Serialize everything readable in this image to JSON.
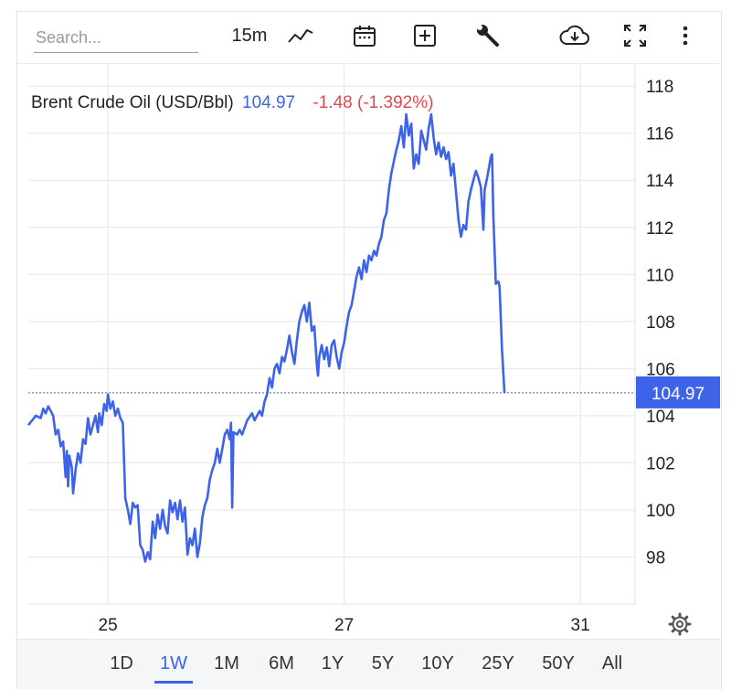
{
  "toolbar": {
    "search_placeholder": "Search...",
    "interval_label": "15m",
    "icons": [
      "line-chart-icon",
      "calendar-icon",
      "add-indicator-icon",
      "wrench-icon",
      "cloud-download-icon",
      "fullscreen-icon",
      "more-vertical-icon"
    ]
  },
  "header": {
    "symbol": "Brent Crude Oil (USD/Bbl)",
    "last": "104.97",
    "change": "-1.48 (-1.392%)"
  },
  "range_buttons": [
    "1D",
    "1W",
    "1M",
    "6M",
    "1Y",
    "5Y",
    "10Y",
    "25Y",
    "50Y",
    "All"
  ],
  "active_range": "1W",
  "colors": {
    "line": "#3d63e8",
    "down": "#e0494f",
    "grid": "#e6e6e6",
    "badge": "#3d63e8"
  },
  "chart_data": {
    "type": "line",
    "title": "Brent Crude Oil (USD/Bbl)",
    "xlabel": "",
    "ylabel": "",
    "x_tick_labels": [
      {
        "label": "25",
        "x": 3.2
      },
      {
        "label": "27",
        "x": 12.7
      },
      {
        "label": "31",
        "x": 22.2
      }
    ],
    "y_ticks": [
      98,
      100,
      102,
      104,
      106,
      108,
      110,
      112,
      114,
      116,
      118
    ],
    "ylim": [
      96.0,
      118.9
    ],
    "xlim": [
      0,
      24.4
    ],
    "last_value": 104.97,
    "grid": true,
    "series": [
      {
        "name": "Brent Crude Oil",
        "points": [
          [
            0,
            103.6
          ],
          [
            0.3,
            104.0
          ],
          [
            0.5,
            103.9
          ],
          [
            0.6,
            104.3
          ],
          [
            0.7,
            104.1
          ],
          [
            0.8,
            104.4
          ],
          [
            0.9,
            104.2
          ],
          [
            1.0,
            104.0
          ],
          [
            1.1,
            103.2
          ],
          [
            1.2,
            103.4
          ],
          [
            1.3,
            102.7
          ],
          [
            1.4,
            102.9
          ],
          [
            1.5,
            101.4
          ],
          [
            1.55,
            102.5
          ],
          [
            1.6,
            101.0
          ],
          [
            1.65,
            102.3
          ],
          [
            1.75,
            101.8
          ],
          [
            1.8,
            100.7
          ],
          [
            1.9,
            101.7
          ],
          [
            2.0,
            102.4
          ],
          [
            2.1,
            102.0
          ],
          [
            2.2,
            103.0
          ],
          [
            2.3,
            102.8
          ],
          [
            2.4,
            103.9
          ],
          [
            2.5,
            103.2
          ],
          [
            2.6,
            103.6
          ],
          [
            2.7,
            104.0
          ],
          [
            2.8,
            103.3
          ],
          [
            2.85,
            104.1
          ],
          [
            2.95,
            103.6
          ],
          [
            3.05,
            104.5
          ],
          [
            3.15,
            104.2
          ],
          [
            3.2,
            104.9
          ],
          [
            3.3,
            104.3
          ],
          [
            3.4,
            104.6
          ],
          [
            3.5,
            104.0
          ],
          [
            3.6,
            104.3
          ],
          [
            3.7,
            103.9
          ],
          [
            3.8,
            103.7
          ],
          [
            3.9,
            100.5
          ],
          [
            4.0,
            100.0
          ],
          [
            4.1,
            99.4
          ],
          [
            4.2,
            100.3
          ],
          [
            4.3,
            100.1
          ],
          [
            4.4,
            100.2
          ],
          [
            4.5,
            98.5
          ],
          [
            4.6,
            98.3
          ],
          [
            4.7,
            97.8
          ],
          [
            4.8,
            98.2
          ],
          [
            4.9,
            97.9
          ],
          [
            5.0,
            99.5
          ],
          [
            5.1,
            98.8
          ],
          [
            5.2,
            99.8
          ],
          [
            5.3,
            99.2
          ],
          [
            5.4,
            100.0
          ],
          [
            5.5,
            99.3
          ],
          [
            5.6,
            99.0
          ],
          [
            5.7,
            100.4
          ],
          [
            5.8,
            99.9
          ],
          [
            5.9,
            100.3
          ],
          [
            6.0,
            99.6
          ],
          [
            6.1,
            100.4
          ],
          [
            6.2,
            99.5
          ],
          [
            6.3,
            100.1
          ],
          [
            6.4,
            98.1
          ],
          [
            6.5,
            98.8
          ],
          [
            6.6,
            98.5
          ],
          [
            6.7,
            99.2
          ],
          [
            6.8,
            98.0
          ],
          [
            6.9,
            98.6
          ],
          [
            7.0,
            99.7
          ],
          [
            7.1,
            100.2
          ],
          [
            7.2,
            100.5
          ],
          [
            7.3,
            101.3
          ],
          [
            7.4,
            101.7
          ],
          [
            7.5,
            102.0
          ],
          [
            7.6,
            102.6
          ],
          [
            7.7,
            102.0
          ],
          [
            7.8,
            102.6
          ],
          [
            7.9,
            103.2
          ],
          [
            8.0,
            103.4
          ],
          [
            8.1,
            103.0
          ],
          [
            8.15,
            103.7
          ],
          [
            8.2,
            100.1
          ],
          [
            8.25,
            103.3
          ],
          [
            8.4,
            103.2
          ],
          [
            8.5,
            103.4
          ],
          [
            8.6,
            103.2
          ],
          [
            8.8,
            103.8
          ],
          [
            9.0,
            104.1
          ],
          [
            9.1,
            103.8
          ],
          [
            9.3,
            104.2
          ],
          [
            9.4,
            104.0
          ],
          [
            9.5,
            104.6
          ],
          [
            9.6,
            104.9
          ],
          [
            9.7,
            105.6
          ],
          [
            9.8,
            105.2
          ],
          [
            9.9,
            106.0
          ],
          [
            10.0,
            106.2
          ],
          [
            10.1,
            105.8
          ],
          [
            10.2,
            106.5
          ],
          [
            10.3,
            106.3
          ],
          [
            10.4,
            106.8
          ],
          [
            10.5,
            107.4
          ],
          [
            10.6,
            106.7
          ],
          [
            10.7,
            106.2
          ],
          [
            10.8,
            107.2
          ],
          [
            10.9,
            108.0
          ],
          [
            11.0,
            108.4
          ],
          [
            11.1,
            108.7
          ],
          [
            11.2,
            108.0
          ],
          [
            11.3,
            108.8
          ],
          [
            11.4,
            107.6
          ],
          [
            11.5,
            107.8
          ],
          [
            11.6,
            106.2
          ],
          [
            11.65,
            105.7
          ],
          [
            11.7,
            106.5
          ],
          [
            11.8,
            107.0
          ],
          [
            11.9,
            106.4
          ],
          [
            12.0,
            106.9
          ],
          [
            12.1,
            106.1
          ],
          [
            12.2,
            107.0
          ],
          [
            12.3,
            107.2
          ],
          [
            12.4,
            106.5
          ],
          [
            12.5,
            106.0
          ],
          [
            12.6,
            106.7
          ],
          [
            12.7,
            107.1
          ],
          [
            12.8,
            107.8
          ],
          [
            12.9,
            108.4
          ],
          [
            13.0,
            108.7
          ],
          [
            13.1,
            109.3
          ],
          [
            13.2,
            109.9
          ],
          [
            13.3,
            110.3
          ],
          [
            13.4,
            109.8
          ],
          [
            13.5,
            110.6
          ],
          [
            13.6,
            110.1
          ],
          [
            13.7,
            110.8
          ],
          [
            13.8,
            110.6
          ],
          [
            13.9,
            111.0
          ],
          [
            14.0,
            110.8
          ],
          [
            14.1,
            111.3
          ],
          [
            14.2,
            111.6
          ],
          [
            14.3,
            112.3
          ],
          [
            14.4,
            112.6
          ],
          [
            14.5,
            113.6
          ],
          [
            14.6,
            114.3
          ],
          [
            14.7,
            114.8
          ],
          [
            14.8,
            115.3
          ],
          [
            14.9,
            115.7
          ],
          [
            15.0,
            116.3
          ],
          [
            15.1,
            115.4
          ],
          [
            15.2,
            116.8
          ],
          [
            15.3,
            115.9
          ],
          [
            15.4,
            116.4
          ],
          [
            15.5,
            114.5
          ],
          [
            15.6,
            115.1
          ],
          [
            15.7,
            114.7
          ],
          [
            15.8,
            116.1
          ],
          [
            15.9,
            115.7
          ],
          [
            16.0,
            115.3
          ],
          [
            16.1,
            116.2
          ],
          [
            16.2,
            116.8
          ],
          [
            16.3,
            115.8
          ],
          [
            16.4,
            115.1
          ],
          [
            16.5,
            115.6
          ],
          [
            16.6,
            115.0
          ],
          [
            16.7,
            115.4
          ],
          [
            16.8,
            114.9
          ],
          [
            16.9,
            115.2
          ],
          [
            17.0,
            114.2
          ],
          [
            17.1,
            114.7
          ],
          [
            17.2,
            113.5
          ],
          [
            17.3,
            112.3
          ],
          [
            17.4,
            111.6
          ],
          [
            17.5,
            112.1
          ],
          [
            17.6,
            111.9
          ],
          [
            17.7,
            113.1
          ],
          [
            17.8,
            113.6
          ],
          [
            17.9,
            114.0
          ],
          [
            18.0,
            114.4
          ],
          [
            18.1,
            114.1
          ],
          [
            18.2,
            113.7
          ],
          [
            18.3,
            111.9
          ],
          [
            18.35,
            113.6
          ],
          [
            18.45,
            114.1
          ],
          [
            18.6,
            115.0
          ],
          [
            18.65,
            115.1
          ],
          [
            18.7,
            112.5
          ],
          [
            18.8,
            109.6
          ],
          [
            18.9,
            109.7
          ],
          [
            18.95,
            109.5
          ],
          [
            19.05,
            106.8
          ],
          [
            19.15,
            104.97
          ]
        ]
      }
    ]
  }
}
